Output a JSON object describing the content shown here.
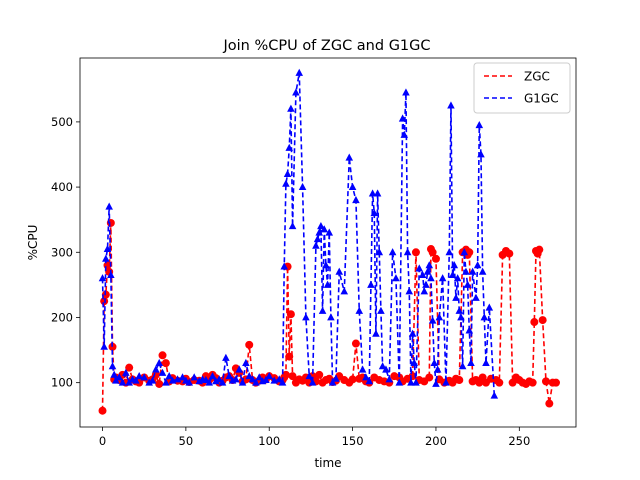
{
  "chart_data": {
    "type": "line",
    "title": "Join %CPU of ZGC and G1GC",
    "xlabel": "time",
    "ylabel": "%CPU",
    "xlim": [
      -13.5,
      284
    ],
    "ylim": [
      32,
      598
    ],
    "xticks": [
      0,
      50,
      100,
      150,
      200,
      250
    ],
    "yticks": [
      100,
      200,
      300,
      400,
      500
    ],
    "grid": false,
    "legend_position": "top-right",
    "series": [
      {
        "name": "ZGC",
        "color": "#ff0000",
        "linestyle": "dashed",
        "marker": "circle",
        "x": [
          0,
          1,
          2,
          3,
          4,
          5,
          6,
          7,
          8,
          10,
          12,
          14,
          16,
          18,
          20,
          22,
          25,
          28,
          30,
          32,
          34,
          36,
          38,
          40,
          42,
          45,
          48,
          50,
          52,
          55,
          58,
          60,
          62,
          64,
          66,
          68,
          70,
          72,
          74,
          76,
          78,
          80,
          82,
          84,
          86,
          88,
          90,
          92,
          94,
          96,
          98,
          100,
          103,
          106,
          108,
          109,
          110,
          111,
          112,
          113,
          114,
          116,
          118,
          120,
          122,
          124,
          126,
          128,
          130,
          132,
          134,
          136,
          138,
          140,
          142,
          145,
          148,
          150,
          152,
          154,
          156,
          158,
          160,
          163,
          166,
          169,
          172,
          175,
          178,
          180,
          183,
          186,
          188,
          190,
          193,
          196,
          197,
          198,
          200,
          202,
          205,
          208,
          210,
          212,
          214,
          216,
          218,
          219,
          220,
          222,
          224,
          226,
          228,
          230,
          233,
          236,
          238,
          240,
          242,
          244,
          246,
          248,
          250,
          252,
          254,
          256,
          258,
          259,
          260,
          261,
          262,
          264,
          266,
          268,
          270,
          272
        ],
        "y": [
          57,
          225,
          235,
          280,
          270,
          345,
          155,
          105,
          108,
          104,
          112,
          100,
          123,
          105,
          102,
          100,
          108,
          103,
          105,
          112,
          98,
          142,
          130,
          102,
          107,
          103,
          102,
          106,
          101,
          104,
          103,
          100,
          110,
          104,
          112,
          107,
          100,
          103,
          108,
          110,
          104,
          122,
          115,
          102,
          105,
          158,
          104,
          100,
          103,
          108,
          105,
          110,
          107,
          102,
          104,
          108,
          112,
          278,
          140,
          205,
          110,
          100,
          105,
          103,
          108,
          100,
          110,
          102,
          112,
          100,
          104,
          106,
          101,
          103,
          110,
          104,
          100,
          105,
          160,
          106,
          108,
          102,
          100,
          108,
          104,
          102,
          100,
          110,
          108,
          102,
          106,
          110,
          300,
          104,
          102,
          108,
          305,
          300,
          290,
          105,
          100,
          103,
          100,
          106,
          104,
          300,
          304,
          296,
          300,
          102,
          104,
          100,
          108,
          100,
          106,
          104,
          100,
          296,
          302,
          298,
          100,
          108,
          104,
          100,
          98,
          102,
          100,
          193,
          302,
          298,
          304,
          196,
          102,
          68,
          100,
          100
        ]
      },
      {
        "name": "G1GC",
        "color": "#0000ff",
        "linestyle": "dashed",
        "marker": "triangle",
        "x": [
          0,
          1,
          2,
          3,
          4,
          5,
          6,
          7,
          8,
          10,
          12,
          14,
          16,
          18,
          20,
          22,
          25,
          28,
          30,
          32,
          34,
          36,
          38,
          40,
          42,
          45,
          48,
          50,
          52,
          55,
          58,
          60,
          62,
          64,
          66,
          68,
          70,
          72,
          74,
          76,
          78,
          80,
          82,
          84,
          86,
          88,
          90,
          92,
          94,
          96,
          98,
          100,
          103,
          106,
          108,
          109,
          110,
          111,
          112,
          113,
          114,
          116,
          118,
          120,
          122,
          124,
          126,
          128,
          129,
          130,
          131,
          132,
          133,
          134,
          135,
          136,
          137,
          138,
          140,
          142,
          145,
          148,
          150,
          152,
          154,
          156,
          158,
          160,
          161,
          162,
          163,
          164,
          165,
          166,
          167,
          168,
          170,
          172,
          174,
          176,
          178,
          180,
          181,
          182,
          183,
          184,
          185,
          186,
          187,
          188,
          190,
          192,
          193,
          194,
          195,
          196,
          197,
          198,
          199,
          200,
          201,
          202,
          204,
          206,
          208,
          209,
          210,
          211,
          212,
          213,
          214,
          215,
          216,
          217,
          218,
          219,
          220,
          221,
          222,
          224,
          225,
          226,
          227,
          228,
          229,
          230,
          232,
          235
        ],
        "y": [
          260,
          155,
          290,
          305,
          370,
          265,
          125,
          112,
          103,
          108,
          100,
          115,
          100,
          105,
          103,
          110,
          108,
          100,
          103,
          120,
          130,
          115,
          100,
          110,
          103,
          105,
          108,
          103,
          100,
          108,
          102,
          105,
          104,
          100,
          110,
          102,
          105,
          100,
          138,
          110,
          103,
          105,
          120,
          100,
          130,
          110,
          105,
          100,
          108,
          102,
          104,
          110,
          103,
          105,
          100,
          278,
          405,
          420,
          460,
          520,
          340,
          545,
          575,
          400,
          200,
          110,
          100,
          310,
          320,
          330,
          340,
          210,
          335,
          280,
          250,
          330,
          200,
          100,
          106,
          270,
          240,
          445,
          400,
          380,
          210,
          120,
          108,
          102,
          250,
          390,
          360,
          175,
          390,
          300,
          210,
          125,
          120,
          105,
          300,
          260,
          100,
          505,
          480,
          545,
          300,
          240,
          100,
          175,
          130,
          100,
          275,
          265,
          240,
          250,
          270,
          280,
          260,
          195,
          130,
          98,
          120,
          200,
          260,
          100,
          300,
          525,
          265,
          280,
          230,
          260,
          210,
          200,
          125,
          300,
          270,
          250,
          180,
          130,
          270,
          230,
          280,
          495,
          450,
          270,
          200,
          130,
          215,
          80
        ]
      }
    ]
  }
}
